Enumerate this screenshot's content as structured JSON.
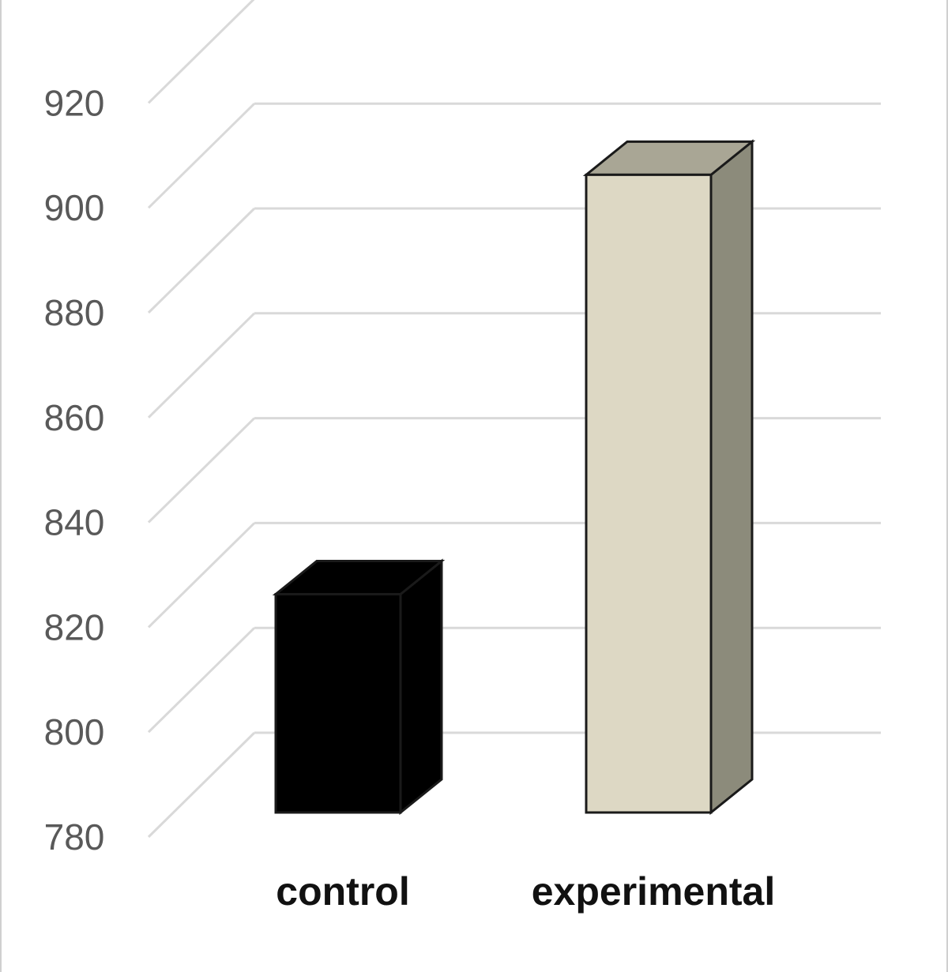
{
  "chart_data": {
    "type": "bar",
    "categories": [
      "control",
      "experimental"
    ],
    "values": [
      826,
      906
    ],
    "ylim": [
      780,
      920
    ],
    "yticks": [
      780,
      800,
      820,
      840,
      860,
      880,
      900,
      920
    ],
    "grid": true,
    "three_d": true,
    "colors": {
      "control": {
        "front": "#000000",
        "side": "#000000",
        "top": "#000000"
      },
      "experimental": {
        "front": "#ddd8c4",
        "side": "#8c8b7b",
        "top": "#a9a695"
      },
      "grid": "#d9d9d9",
      "outline": "#1a1a1a"
    }
  }
}
